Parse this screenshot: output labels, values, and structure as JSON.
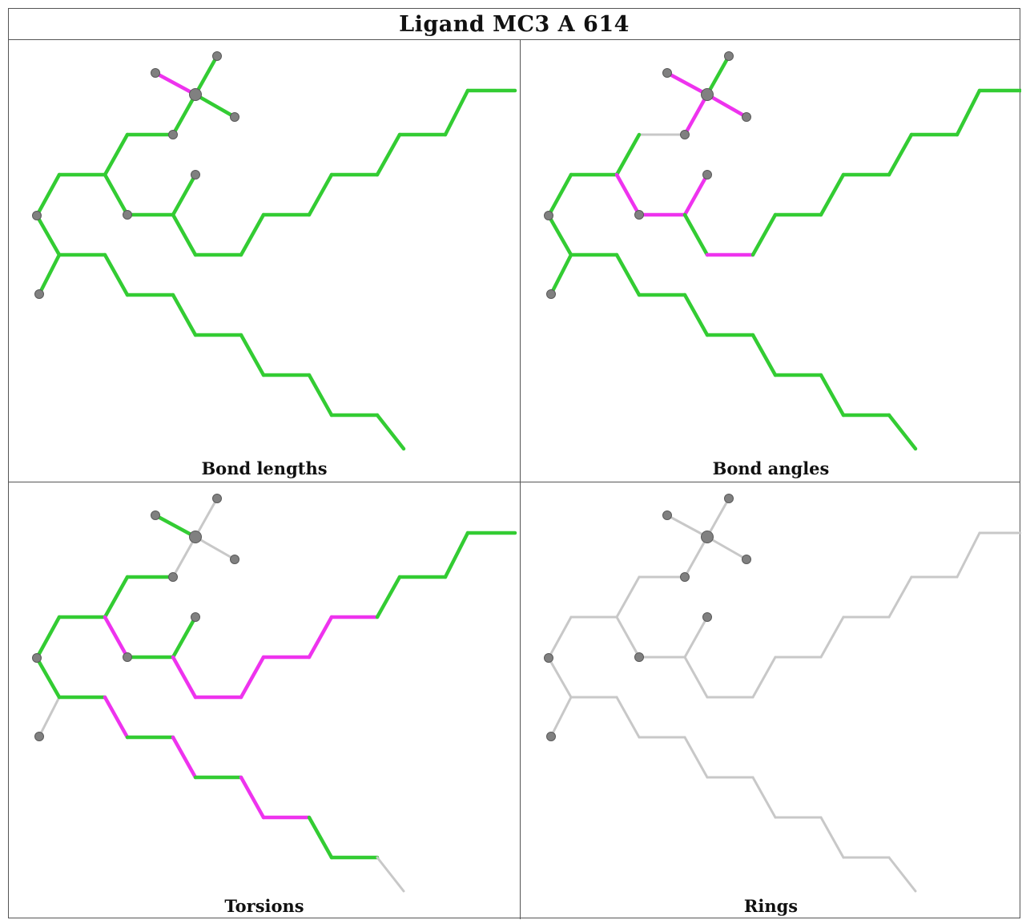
{
  "title": "Ligand MC3 A 614",
  "panels": [
    {
      "caption": "Bond lengths"
    },
    {
      "caption": "Bond angles"
    },
    {
      "caption": "Torsions"
    },
    {
      "caption": "Rings"
    }
  ],
  "colors": {
    "good": "#33cc33",
    "outlier": "#ee33ee",
    "neutral": "#c8c8c8",
    "atom": "#808080"
  }
}
